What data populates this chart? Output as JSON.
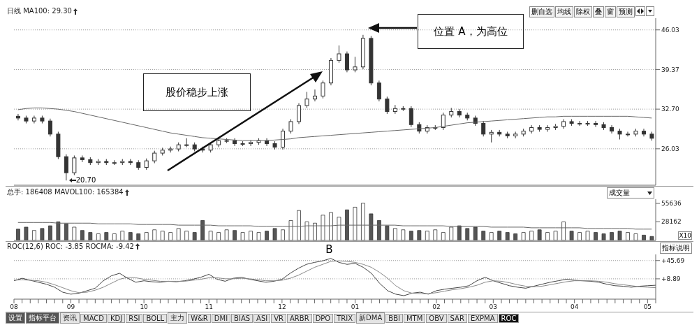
{
  "chart_data": [
    {
      "type": "candlestick",
      "title": "日线 MA100: 29.30",
      "categories": [
        null,
        null,
        null,
        null,
        null,
        null,
        null,
        null,
        null,
        null,
        null,
        null,
        null,
        null,
        null,
        null,
        null,
        null,
        null,
        null,
        null,
        null,
        null,
        null,
        null,
        null,
        null,
        null,
        null,
        null,
        null,
        null,
        null,
        null,
        null,
        null,
        null,
        null,
        null,
        null,
        null,
        null,
        null,
        null,
        null,
        null,
        null,
        null,
        null,
        null,
        null,
        null,
        null,
        null,
        null,
        null,
        null,
        null,
        null,
        null,
        null,
        null,
        null,
        null,
        null,
        null,
        null,
        null,
        null,
        null,
        null,
        null,
        null,
        null,
        null,
        null,
        null,
        null,
        null,
        null
      ],
      "color": "#333333",
      "ohlc": [
        [
          31.5,
          31.9,
          30.8,
          31.2
        ],
        [
          31.2,
          31.6,
          30.3,
          30.7
        ],
        [
          30.7,
          31.6,
          30.3,
          31.2
        ],
        [
          31.2,
          31.6,
          30.3,
          30.7
        ],
        [
          30.7,
          31.1,
          28.1,
          28.5
        ],
        [
          28.5,
          28.9,
          24.3,
          24.7
        ],
        [
          24.7,
          25.1,
          20.7,
          22.0
        ],
        [
          22.0,
          24.9,
          21.6,
          24.5
        ],
        [
          24.5,
          24.9,
          23.8,
          24.2
        ],
        [
          24.2,
          24.6,
          23.3,
          23.7
        ],
        [
          23.7,
          24.3,
          23.3,
          23.9
        ],
        [
          23.9,
          24.3,
          23.3,
          23.7
        ],
        [
          23.7,
          24.1,
          23.3,
          23.7
        ],
        [
          23.7,
          24.3,
          23.3,
          23.9
        ],
        [
          23.9,
          24.3,
          23.3,
          23.7
        ],
        [
          23.7,
          24.1,
          22.5,
          22.9
        ],
        [
          22.9,
          24.4,
          22.5,
          24.0
        ],
        [
          24.0,
          25.7,
          23.6,
          25.3
        ],
        [
          25.3,
          26.2,
          24.9,
          25.8
        ],
        [
          25.8,
          26.4,
          25.4,
          26.0
        ],
        [
          26.0,
          27.1,
          25.6,
          26.7
        ],
        [
          26.7,
          27.8,
          26.3,
          26.7
        ],
        [
          26.7,
          27.1,
          25.6,
          26.0
        ],
        [
          26.0,
          26.4,
          25.4,
          25.8
        ],
        [
          25.8,
          27.1,
          25.4,
          26.7
        ],
        [
          26.7,
          27.8,
          26.3,
          27.4
        ],
        [
          27.4,
          27.8,
          27.0,
          27.4
        ],
        [
          27.4,
          27.8,
          26.5,
          26.9
        ],
        [
          26.9,
          27.3,
          26.5,
          26.9
        ],
        [
          26.9,
          27.5,
          26.5,
          27.1
        ],
        [
          27.1,
          27.8,
          26.7,
          27.4
        ],
        [
          27.4,
          27.8,
          26.5,
          26.9
        ],
        [
          26.9,
          27.3,
          25.9,
          26.3
        ],
        [
          26.3,
          29.4,
          25.9,
          29.0
        ],
        [
          29.0,
          31.0,
          28.6,
          30.6
        ],
        [
          30.6,
          33.7,
          30.2,
          33.3
        ],
        [
          33.3,
          35.6,
          32.9,
          34.4
        ],
        [
          34.4,
          36.0,
          34.0,
          34.9
        ],
        [
          34.9,
          37.5,
          34.5,
          37.1
        ],
        [
          37.1,
          41.3,
          36.7,
          40.9
        ],
        [
          40.9,
          43.4,
          40.5,
          42.0
        ],
        [
          42.0,
          42.4,
          38.9,
          39.3
        ],
        [
          39.3,
          41.5,
          38.9,
          39.8
        ],
        [
          39.8,
          45.2,
          39.4,
          44.6
        ],
        [
          44.6,
          45.0,
          36.7,
          37.1
        ],
        [
          37.1,
          37.5,
          34.0,
          34.4
        ],
        [
          34.4,
          34.8,
          31.9,
          32.3
        ],
        [
          32.3,
          33.4,
          31.9,
          32.8
        ],
        [
          32.8,
          33.2,
          32.4,
          32.8
        ],
        [
          32.8,
          33.2,
          29.7,
          30.1
        ],
        [
          30.1,
          30.5,
          28.6,
          29.0
        ],
        [
          29.0,
          30.0,
          28.6,
          29.6
        ],
        [
          29.6,
          30.0,
          29.2,
          29.6
        ],
        [
          29.6,
          32.1,
          29.2,
          31.7
        ],
        [
          31.7,
          32.9,
          31.3,
          32.3
        ],
        [
          32.3,
          32.7,
          31.3,
          31.7
        ],
        [
          31.7,
          32.1,
          30.8,
          31.2
        ],
        [
          31.2,
          31.6,
          29.9,
          30.3
        ],
        [
          30.3,
          30.7,
          28.1,
          28.5
        ],
        [
          28.5,
          29.2,
          27.1,
          28.8
        ],
        [
          28.8,
          29.2,
          28.1,
          28.5
        ],
        [
          28.5,
          28.9,
          27.8,
          28.2
        ],
        [
          28.2,
          28.9,
          27.8,
          28.5
        ],
        [
          28.5,
          29.4,
          28.1,
          29.0
        ],
        [
          29.0,
          30.0,
          28.6,
          29.6
        ],
        [
          29.6,
          30.0,
          28.9,
          29.3
        ],
        [
          29.3,
          30.0,
          28.9,
          29.6
        ],
        [
          29.6,
          30.2,
          29.2,
          29.8
        ],
        [
          29.8,
          31.0,
          29.4,
          30.6
        ],
        [
          30.6,
          31.0,
          29.9,
          30.3
        ],
        [
          30.3,
          30.7,
          29.9,
          30.3
        ],
        [
          30.3,
          30.7,
          29.9,
          30.3
        ],
        [
          30.3,
          30.7,
          29.7,
          30.1
        ],
        [
          30.1,
          30.5,
          29.2,
          29.6
        ],
        [
          29.6,
          30.0,
          28.6,
          29.0
        ],
        [
          29.0,
          29.4,
          27.6,
          28.5
        ],
        [
          28.5,
          28.9,
          28.1,
          28.5
        ],
        [
          28.5,
          29.4,
          28.1,
          29.0
        ],
        [
          29.0,
          29.4,
          28.1,
          28.5
        ],
        [
          28.5,
          28.9,
          27.4,
          27.8
        ]
      ],
      "series": [
        {
          "type": "line",
          "color": "#666666",
          "values": [
            32.6,
            32.8,
            32.9,
            32.9,
            32.8,
            32.7,
            32.5,
            32.3,
            32.0,
            31.7,
            31.4,
            31.1,
            30.8,
            30.5,
            30.2,
            29.9,
            29.6,
            29.3,
            29.0,
            28.7,
            28.5,
            28.3,
            28.1,
            27.9,
            27.8,
            27.7,
            27.6,
            27.5,
            27.4,
            27.4,
            27.4,
            27.4,
            27.5,
            27.6,
            27.7,
            27.9,
            28.0,
            28.1,
            28.2,
            28.3,
            28.4,
            28.5,
            28.6,
            28.7,
            28.8,
            28.9,
            29.0,
            29.1,
            29.2,
            29.3,
            29.4,
            29.5,
            29.6,
            29.8,
            30.0,
            30.2,
            30.4,
            30.5,
            30.6,
            30.7,
            30.8,
            30.9,
            31.0,
            31.1,
            31.2,
            31.3,
            31.4,
            31.4,
            31.5,
            31.5,
            31.5,
            31.5,
            31.5,
            31.5,
            31.5,
            31.5,
            31.5,
            31.4,
            31.3,
            31.2
          ]
        }
      ],
      "ylim": [
        19.9,
        48
      ],
      "yticks": [
        26.03,
        {
          "value": 32.7,
          "label": "32.70"
        },
        39.37,
        46.03
      ],
      "grid": "y",
      "tick_labels": "y",
      "annotations": [
        "股价稳步上涨",
        "位置 A，为高位",
        "20.70",
        "删自选",
        "均线",
        "除权",
        "叠",
        "窗",
        "预测"
      ]
    },
    {
      "type": "bar",
      "title": "总手: 186408 MAVOL100: 165384",
      "categories": [
        null,
        null,
        null,
        null,
        null,
        null,
        null,
        null,
        null,
        null,
        null,
        null,
        null,
        null,
        null,
        null,
        null,
        null,
        null,
        null,
        null,
        null,
        null,
        null,
        null,
        null,
        null,
        null,
        null,
        null,
        null,
        null,
        null,
        null,
        null,
        null,
        null,
        null,
        null,
        null,
        null,
        null,
        null,
        null,
        null,
        null,
        null,
        null,
        null,
        null,
        null,
        null,
        null,
        null,
        null,
        null,
        null,
        null,
        null,
        null,
        null,
        null,
        null,
        null,
        null,
        null,
        null,
        null,
        null,
        null,
        null,
        null,
        null,
        null,
        null,
        null,
        null,
        null,
        null,
        null
      ],
      "series": [
        {
          "type": "bar",
          "colors": [
            "#555555",
            "#555555",
            "#ffffff",
            "#555555",
            "#555555",
            "#555555",
            "#555555",
            "#ffffff",
            "#555555",
            "#555555",
            "#ffffff",
            "#555555",
            "#ffffff",
            "#ffffff",
            "#555555",
            "#555555",
            "#ffffff",
            "#ffffff",
            "#ffffff",
            "#ffffff",
            "#ffffff",
            "#ffffff",
            "#555555",
            "#555555",
            "#ffffff",
            "#ffffff",
            "#ffffff",
            "#555555",
            "#ffffff",
            "#ffffff",
            "#ffffff",
            "#555555",
            "#555555",
            "#ffffff",
            "#ffffff",
            "#ffffff",
            "#ffffff",
            "#ffffff",
            "#ffffff",
            "#ffffff",
            "#ffffff",
            "#555555",
            "#ffffff",
            "#ffffff",
            "#555555",
            "#555555",
            "#555555",
            "#ffffff",
            "#ffffff",
            "#555555",
            "#555555",
            "#ffffff",
            "#ffffff",
            "#ffffff",
            "#ffffff",
            "#555555",
            "#555555",
            "#555555",
            "#555555",
            "#ffffff",
            "#555555",
            "#555555",
            "#555555",
            "#ffffff",
            "#ffffff",
            "#555555",
            "#ffffff",
            "#ffffff",
            "#ffffff",
            "#555555",
            "#ffffff",
            "#ffffff",
            "#555555",
            "#555555",
            "#555555",
            "#555555",
            "#ffffff",
            "#ffffff",
            "#555555",
            "#555555"
          ],
          "values": [
            17000,
            20000,
            15000,
            18000,
            22000,
            28000,
            25000,
            20000,
            15000,
            12000,
            10000,
            12000,
            10000,
            14000,
            12000,
            10000,
            12000,
            16000,
            14000,
            12000,
            18000,
            14000,
            12000,
            30000,
            14000,
            12000,
            16000,
            15000,
            12000,
            14000,
            12000,
            14000,
            18000,
            16000,
            30000,
            45000,
            28000,
            26000,
            38000,
            42000,
            35000,
            46000,
            50000,
            56000,
            40000,
            30000,
            22000,
            18000,
            16000,
            14000,
            15000,
            14000,
            16000,
            12000,
            20000,
            22000,
            18000,
            20000,
            14000,
            12000,
            14000,
            12000,
            10000,
            12000,
            14000,
            16000,
            12000,
            14000,
            28000,
            14000,
            12000,
            14000,
            12000,
            10000,
            12000,
            14000,
            12000,
            10000,
            8000,
            6000
          ]
        },
        {
          "type": "line",
          "color": "#666666",
          "values": [
            27000,
            27000,
            27000,
            27000,
            27000,
            26000,
            26000,
            26000,
            26000,
            26000,
            25000,
            25000,
            25000,
            25000,
            25000,
            24000,
            24000,
            24000,
            24000,
            24000,
            23000,
            23000,
            23000,
            23000,
            23000,
            22000,
            22000,
            22000,
            22000,
            22000,
            21000,
            21000,
            21000,
            21000,
            21000,
            21000,
            22000,
            22000,
            22000,
            22000,
            23000,
            23000,
            23000,
            23000,
            23000,
            23000,
            23000,
            23000,
            22000,
            22000,
            22000,
            22000,
            22000,
            22000,
            21000,
            21000,
            21000,
            21000,
            21000,
            20000,
            20000,
            20000,
            20000,
            20000,
            19000,
            19000,
            19000,
            19000,
            19000,
            19000,
            19000,
            18000,
            18000,
            18000,
            18000,
            18000,
            18000,
            17000,
            17000,
            17000
          ]
        }
      ],
      "ylim": [
        0,
        62000
      ],
      "yticks": [
        28162,
        55636
      ],
      "tick_labels": "y",
      "annotations": [
        "成交量",
        "X10"
      ]
    },
    {
      "type": "line",
      "title": "ROC(12,6) ROC: -3.85 ROCMA: -9.42",
      "categories": [
        "08",
        null,
        null,
        null,
        null,
        null,
        null,
        "09",
        null,
        null,
        null,
        null,
        null,
        null,
        null,
        null,
        "10",
        null,
        null,
        null,
        null,
        null,
        null,
        null,
        "11",
        null,
        null,
        null,
        null,
        null,
        null,
        null,
        null,
        "12",
        null,
        null,
        null,
        null,
        null,
        null,
        null,
        null,
        "01",
        null,
        null,
        null,
        null,
        null,
        null,
        null,
        null,
        null,
        "02",
        null,
        null,
        null,
        null,
        null,
        null,
        "03",
        null,
        null,
        null,
        null,
        null,
        null,
        null,
        null,
        null,
        "04",
        null,
        null,
        null,
        null,
        null,
        null,
        null,
        null,
        "05",
        null
      ],
      "series": [
        {
          "color": "#444444",
          "values": [
            5,
            10,
            6,
            2,
            -2,
            -8,
            -18,
            -22,
            -20,
            -15,
            -10,
            5,
            15,
            20,
            10,
            2,
            5,
            3,
            2,
            4,
            3,
            5,
            8,
            12,
            18,
            8,
            4,
            10,
            12,
            8,
            5,
            2,
            4,
            8,
            20,
            30,
            38,
            42,
            45,
            50,
            42,
            38,
            40,
            32,
            20,
            0,
            -15,
            -22,
            -25,
            -20,
            -18,
            -22,
            -15,
            -12,
            -10,
            -8,
            -5,
            5,
            12,
            5,
            0,
            -5,
            -8,
            -10,
            -6,
            -2,
            2,
            5,
            8,
            6,
            5,
            4,
            2,
            -2,
            -5,
            -6,
            -8,
            -6,
            -5,
            -4
          ]
        },
        {
          "color": "#888888",
          "values": [
            6,
            7,
            6,
            5,
            2,
            -3,
            -9,
            -15,
            -19,
            -18,
            -14,
            -8,
            0,
            8,
            12,
            11,
            8,
            6,
            4,
            4,
            4,
            4,
            6,
            8,
            11,
            11,
            9,
            9,
            10,
            9,
            7,
            5,
            5,
            6,
            10,
            16,
            24,
            32,
            38,
            44,
            45,
            44,
            42,
            38,
            32,
            22,
            10,
            -5,
            -15,
            -20,
            -21,
            -21,
            -19,
            -16,
            -13,
            -11,
            -8,
            -4,
            2,
            5,
            4,
            1,
            -3,
            -6,
            -7,
            -6,
            -3,
            0,
            3,
            5,
            5,
            5,
            4,
            2,
            -1,
            -3,
            -5,
            -7,
            -8,
            -9
          ]
        }
      ],
      "ylim": [
        -32,
        58
      ],
      "yticks": [
        {
          "value": 8.89,
          "label": "+8.89"
        },
        {
          "value": 45.69,
          "label": "+45.69"
        }
      ],
      "grid": "y",
      "annotations": [
        "B",
        "指标说明",
        "设置",
        "指标平台",
        "资讯",
        "MACD",
        "KDJ",
        "RSI",
        "BOLL",
        "主力",
        "W&R",
        "DMI",
        "BIAS",
        "ASI",
        "VR",
        "ARBR",
        "DPO",
        "TRIX",
        "新DMA",
        "BBI",
        "MTM",
        "OBV",
        "SAR",
        "EXPMA",
        "ROC"
      ]
    }
  ]
}
